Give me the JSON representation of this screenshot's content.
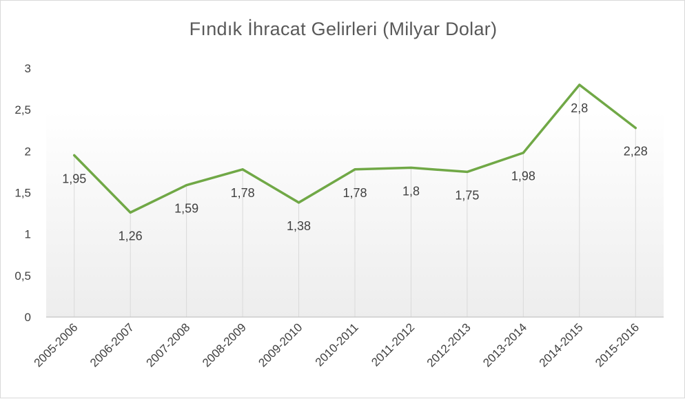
{
  "chart_data": {
    "type": "line",
    "title": "Fındık İhracat Gelirleri (Milyar Dolar)",
    "xlabel": "",
    "ylabel": "",
    "categories": [
      "2005-2006",
      "2006-2007",
      "2007-2008",
      "2008-2009",
      "2009-2010",
      "2010-2011",
      "2011-2012",
      "2012-2013",
      "2013-2014",
      "2014-2015",
      "2015-2016"
    ],
    "values": [
      1.95,
      1.26,
      1.59,
      1.78,
      1.38,
      1.78,
      1.8,
      1.75,
      1.98,
      2.8,
      2.28
    ],
    "value_labels": [
      "1,95",
      "1,26",
      "1,59",
      "1,78",
      "1,38",
      "1,78",
      "1,8",
      "1,75",
      "1,98",
      "2,8",
      "2,28"
    ],
    "ylim": [
      0,
      3
    ],
    "yticks": [
      0,
      0.5,
      1,
      1.5,
      2,
      2.5,
      3
    ],
    "ytick_labels": [
      "0",
      "0,5",
      "1",
      "1,5",
      "2",
      "2,5",
      "3"
    ],
    "grid": "vertical",
    "legend": "none",
    "line_color": "#70a846"
  }
}
